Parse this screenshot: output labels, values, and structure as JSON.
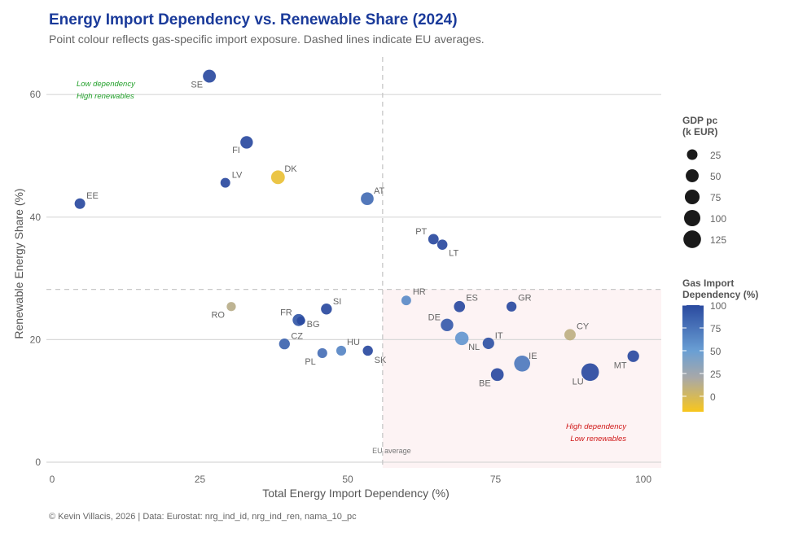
{
  "chart_data": {
    "type": "scatter",
    "title": "Energy Import Dependency vs. Renewable Share (2024)",
    "subtitle": "Point colour reflects gas-specific import exposure. Dashed lines indicate EU averages.",
    "xlabel": "Total Energy Import Dependency (%)",
    "ylabel": "Renewable Energy Share (%)",
    "xlim": [
      -1,
      103
    ],
    "ylim": [
      0,
      66
    ],
    "x_ticks": [
      "0",
      "25",
      "50",
      "75",
      "100"
    ],
    "y_ticks": [
      "0",
      "20",
      "40",
      "60"
    ],
    "grid": "horizontal",
    "eu_average": {
      "x": 55.9,
      "y": 28.2,
      "label": "EU average"
    },
    "quadrant_labels": {
      "top_left": [
        "Low dependency",
        "High renewables"
      ],
      "bottom_right": [
        "High dependency",
        "Low renewables"
      ]
    },
    "colors": {
      "title": "#1a3a9a",
      "low_quadrant": "#22a02a",
      "high_quadrant": "#d01818",
      "quadrant_fill": "#fdf3f4",
      "gas_high": "#2a4a9f",
      "gas_mid": "#6a9fd4",
      "gas_grey": "#a8a8a8",
      "gas_low": "#f8c61c"
    },
    "legend_size": {
      "title": [
        "GDP pc",
        "(k EUR)"
      ],
      "values": [
        25,
        50,
        75,
        100,
        125
      ],
      "labels": [
        "25",
        "50",
        "75",
        "100",
        "125"
      ],
      "placement": "right"
    },
    "legend_color": {
      "title": [
        "Gas Import",
        "Dependency (%)"
      ],
      "range": [
        -17,
        100
      ],
      "ticks": [
        100,
        75,
        50,
        25,
        0
      ],
      "labels": [
        "100",
        "75",
        "50",
        "25",
        "0"
      ],
      "placement": "right"
    },
    "points": [
      {
        "label": "SE",
        "x": 26.6,
        "y": 63.0,
        "gdp": 50,
        "gas": 100
      },
      {
        "label": "FI",
        "x": 32.9,
        "y": 52.2,
        "gdp": 45,
        "gas": 100
      },
      {
        "label": "LV",
        "x": 29.3,
        "y": 45.6,
        "gdp": 18,
        "gas": 100
      },
      {
        "label": "DK",
        "x": 38.2,
        "y": 46.5,
        "gdp": 60,
        "gas": -10
      },
      {
        "label": "EE",
        "x": 4.7,
        "y": 42.2,
        "gdp": 25,
        "gas": 100
      },
      {
        "label": "AT",
        "x": 53.3,
        "y": 43.0,
        "gdp": 48,
        "gas": 80
      },
      {
        "label": "PT",
        "x": 64.5,
        "y": 36.4,
        "gdp": 24,
        "gas": 100
      },
      {
        "label": "LT",
        "x": 66.0,
        "y": 35.5,
        "gdp": 22,
        "gas": 100
      },
      {
        "label": "HR",
        "x": 59.9,
        "y": 26.4,
        "gdp": 18,
        "gas": 62
      },
      {
        "label": "ES",
        "x": 68.9,
        "y": 25.4,
        "gdp": 30,
        "gas": 100
      },
      {
        "label": "GR",
        "x": 77.7,
        "y": 25.4,
        "gdp": 20,
        "gas": 100
      },
      {
        "label": "RO",
        "x": 30.3,
        "y": 25.4,
        "gdp": 14,
        "gas": 12
      },
      {
        "label": "FR",
        "x": 41.7,
        "y": 23.2,
        "gdp": 40,
        "gas": 92
      },
      {
        "label": "BG",
        "x": 42.1,
        "y": 23.1,
        "gdp": 10,
        "gas": 100
      },
      {
        "label": "SI",
        "x": 46.4,
        "y": 25.0,
        "gdp": 28,
        "gas": 100
      },
      {
        "label": "DE",
        "x": 66.8,
        "y": 22.4,
        "gdp": 45,
        "gas": 90
      },
      {
        "label": "CY",
        "x": 87.6,
        "y": 20.8,
        "gdp": 32,
        "gas": 10
      },
      {
        "label": "NL",
        "x": 69.3,
        "y": 20.2,
        "gdp": 57,
        "gas": 55
      },
      {
        "label": "IT",
        "x": 73.8,
        "y": 19.4,
        "gdp": 34,
        "gas": 95
      },
      {
        "label": "CZ",
        "x": 39.3,
        "y": 19.3,
        "gdp": 27,
        "gas": 85
      },
      {
        "label": "HU",
        "x": 48.9,
        "y": 18.2,
        "gdp": 19,
        "gas": 65
      },
      {
        "label": "PL",
        "x": 45.7,
        "y": 17.8,
        "gdp": 19,
        "gas": 78
      },
      {
        "label": "SK",
        "x": 53.4,
        "y": 18.2,
        "gdp": 21,
        "gas": 100
      },
      {
        "label": "IE",
        "x": 79.5,
        "y": 16.1,
        "gdp": 95,
        "gas": 72
      },
      {
        "label": "MT",
        "x": 98.3,
        "y": 17.3,
        "gdp": 35,
        "gas": 100
      },
      {
        "label": "BE",
        "x": 75.3,
        "y": 14.3,
        "gdp": 48,
        "gas": 100
      },
      {
        "label": "LU",
        "x": 91.0,
        "y": 14.7,
        "gdp": 125,
        "gas": 100
      }
    ],
    "caption": "© Kevin Villacis, 2026 | Data: Eurostat: nrg_ind_id, nrg_ind_ren, nama_10_pc"
  }
}
